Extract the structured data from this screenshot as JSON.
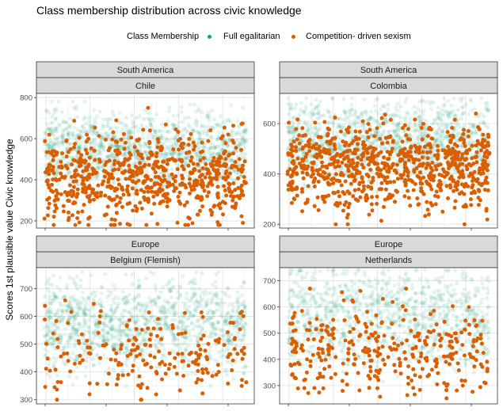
{
  "title": "Class membership distribution across civic knowledge",
  "legend": {
    "title": "Class Membership",
    "items": [
      {
        "label": "Full egalitarian",
        "color": "#1b9e77"
      },
      {
        "label": "Competition- driven sexism",
        "color": "#d95f02"
      }
    ]
  },
  "ylabel": "Scores 1st plausible value Civic knowledge",
  "chart_data": [
    {
      "type": "scatter",
      "region": "South America",
      "country": "Chile",
      "ylim": [
        165,
        820
      ],
      "yticks": [
        200,
        400,
        600,
        800
      ],
      "series": [
        {
          "name": "Full egalitarian",
          "color": "#1b9e77",
          "y_range": [
            320,
            780
          ],
          "center": 540,
          "n": 1400,
          "alpha": 0.12
        },
        {
          "name": "Competition- driven sexism",
          "color": "#d95f02",
          "y_range": [
            180,
            750
          ],
          "center": 410,
          "n": 700,
          "alpha": 1
        }
      ]
    },
    {
      "type": "scatter",
      "region": "South America",
      "country": "Colombia",
      "ylim": [
        185,
        720
      ],
      "yticks": [
        200,
        400,
        600
      ],
      "series": [
        {
          "name": "Full egalitarian",
          "color": "#1b9e77",
          "y_range": [
            300,
            700
          ],
          "center": 530,
          "n": 1400,
          "alpha": 0.12
        },
        {
          "name": "Competition- driven sexism",
          "color": "#d95f02",
          "y_range": [
            200,
            640
          ],
          "center": 430,
          "n": 800,
          "alpha": 1
        }
      ]
    },
    {
      "type": "scatter",
      "region": "Europe",
      "country": "Belgium (Flemish)",
      "ylim": [
        285,
        775
      ],
      "yticks": [
        300,
        400,
        500,
        600,
        700
      ],
      "series": [
        {
          "name": "Full egalitarian",
          "color": "#1b9e77",
          "y_range": [
            350,
            760
          ],
          "center": 570,
          "n": 1300,
          "alpha": 0.12
        },
        {
          "name": "Competition- driven sexism",
          "color": "#d95f02",
          "y_range": [
            300,
            690
          ],
          "center": 460,
          "n": 200,
          "alpha": 1
        }
      ]
    },
    {
      "type": "scatter",
      "region": "Europe",
      "country": "Netherlands",
      "ylim": [
        230,
        750
      ],
      "yticks": [
        300,
        400,
        500,
        600,
        700
      ],
      "series": [
        {
          "name": "Full egalitarian",
          "color": "#1b9e77",
          "y_range": [
            280,
            740
          ],
          "center": 560,
          "n": 1100,
          "alpha": 0.12
        },
        {
          "name": "Competition- driven sexism",
          "color": "#d95f02",
          "y_range": [
            240,
            670
          ],
          "center": 440,
          "n": 320,
          "alpha": 1
        }
      ]
    }
  ]
}
